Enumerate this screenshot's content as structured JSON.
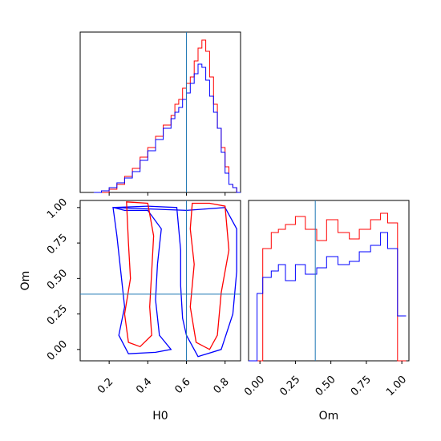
{
  "chart_data": [
    {
      "type": "histogram",
      "panel": "H0 marginal (top-left)",
      "xlim": [
        0.05,
        0.88
      ],
      "ylim": [
        0,
        1.0
      ],
      "ytick_labels": [],
      "xtick_labels": [],
      "truth_line_x": 0.6,
      "bin_edges": [
        0.12,
        0.16,
        0.2,
        0.24,
        0.28,
        0.32,
        0.36,
        0.4,
        0.44,
        0.48,
        0.52,
        0.54,
        0.56,
        0.58,
        0.6,
        0.62,
        0.64,
        0.66,
        0.68,
        0.7,
        0.72,
        0.74,
        0.76,
        0.78,
        0.8,
        0.82,
        0.84,
        0.86,
        0.88
      ],
      "series": [
        {
          "color": "#ff0000",
          "values": [
            0.0,
            0.0,
            0.02,
            0.05,
            0.1,
            0.15,
            0.22,
            0.28,
            0.35,
            0.42,
            0.48,
            0.55,
            0.58,
            0.65,
            0.68,
            0.72,
            0.82,
            0.9,
            0.95,
            0.88,
            0.72,
            0.55,
            0.4,
            0.28,
            0.16,
            0.05,
            0.03,
            0.0
          ]
        },
        {
          "color": "#0000ff",
          "values": [
            0.0,
            0.01,
            0.03,
            0.06,
            0.09,
            0.13,
            0.2,
            0.26,
            0.33,
            0.4,
            0.46,
            0.5,
            0.53,
            0.58,
            0.62,
            0.68,
            0.74,
            0.8,
            0.78,
            0.7,
            0.6,
            0.5,
            0.4,
            0.25,
            0.12,
            0.05,
            0.03,
            0.0
          ]
        }
      ]
    },
    {
      "type": "contour",
      "panel": "H0 vs Om joint (bottom-left)",
      "xlabel": "H0",
      "ylabel": "Om",
      "xlim": [
        0.05,
        0.88
      ],
      "ylim": [
        -0.08,
        1.05
      ],
      "xticks": [
        0.2,
        0.4,
        0.6,
        0.8
      ],
      "xtick_labels": [
        "0.2",
        "0.4",
        "0.6",
        "0.8"
      ],
      "yticks": [
        0.0,
        0.25,
        0.5,
        0.75,
        1.0
      ],
      "ytick_labels": [
        "0.00",
        "0.25",
        "0.50",
        "0.75",
        "1.00"
      ],
      "truth_point": [
        0.6,
        0.39
      ],
      "series": [
        {
          "color": "#0000ff",
          "contours": [
            [
              [
                0.22,
                1.0
              ],
              [
                0.4,
                1.01
              ],
              [
                0.55,
                1.0
              ],
              [
                0.57,
                0.7
              ],
              [
                0.57,
                0.45
              ],
              [
                0.58,
                0.22
              ],
              [
                0.6,
                0.1
              ],
              [
                0.66,
                -0.05
              ],
              [
                0.78,
                0.0
              ],
              [
                0.84,
                0.25
              ],
              [
                0.86,
                0.55
              ],
              [
                0.86,
                0.85
              ],
              [
                0.8,
                1.0
              ],
              [
                0.7,
                0.99
              ],
              [
                0.6,
                0.98
              ]
            ],
            [
              [
                0.28,
                0.98
              ],
              [
                0.4,
                0.98
              ],
              [
                0.47,
                0.85
              ],
              [
                0.45,
                0.6
              ],
              [
                0.44,
                0.35
              ],
              [
                0.46,
                0.1
              ],
              [
                0.52,
                0.0
              ],
              [
                0.44,
                -0.02
              ],
              [
                0.3,
                -0.03
              ],
              [
                0.25,
                0.1
              ],
              [
                0.28,
                0.3
              ],
              [
                0.26,
                0.55
              ],
              [
                0.24,
                0.8
              ],
              [
                0.22,
                1.0
              ]
            ]
          ]
        },
        {
          "color": "#ff0000",
          "contours": [
            [
              [
                0.29,
                1.04
              ],
              [
                0.4,
                1.03
              ],
              [
                0.43,
                0.8
              ],
              [
                0.42,
                0.55
              ],
              [
                0.41,
                0.3
              ],
              [
                0.42,
                0.1
              ],
              [
                0.36,
                0.02
              ],
              [
                0.3,
                0.05
              ],
              [
                0.28,
                0.25
              ],
              [
                0.31,
                0.5
              ],
              [
                0.3,
                0.75
              ]
            ],
            [
              [
                0.63,
                1.03
              ],
              [
                0.72,
                1.03
              ],
              [
                0.8,
                1.01
              ],
              [
                0.82,
                0.7
              ],
              [
                0.78,
                0.4
              ],
              [
                0.76,
                0.1
              ],
              [
                0.72,
                0.0
              ],
              [
                0.65,
                0.05
              ],
              [
                0.62,
                0.3
              ],
              [
                0.64,
                0.6
              ],
              [
                0.62,
                0.85
              ]
            ]
          ]
        }
      ]
    },
    {
      "type": "histogram",
      "panel": "Om marginal (bottom-right)",
      "xlabel": "Om",
      "xlim": [
        -0.08,
        1.05
      ],
      "xticks": [
        0.0,
        0.25,
        0.5,
        0.75,
        1.0
      ],
      "xtick_labels": [
        "0.00",
        "0.25",
        "0.50",
        "0.75",
        "1.00"
      ],
      "truth_line_x": 0.39,
      "bin_edges": [
        -0.08,
        -0.02,
        0.02,
        0.08,
        0.13,
        0.18,
        0.25,
        0.32,
        0.4,
        0.47,
        0.55,
        0.63,
        0.7,
        0.78,
        0.85,
        0.9,
        0.97,
        1.03
      ],
      "series": [
        {
          "color": "#ff0000",
          "values": [
            0.0,
            0.0,
            0.7,
            0.8,
            0.82,
            0.85,
            0.9,
            0.82,
            0.75,
            0.88,
            0.8,
            0.76,
            0.82,
            0.88,
            0.92,
            0.86,
            0.0
          ]
        },
        {
          "color": "#0000ff",
          "values": [
            0.0,
            0.42,
            0.52,
            0.56,
            0.6,
            0.5,
            0.6,
            0.54,
            0.58,
            0.65,
            0.6,
            0.62,
            0.68,
            0.72,
            0.8,
            0.7,
            0.28
          ]
        }
      ]
    }
  ]
}
